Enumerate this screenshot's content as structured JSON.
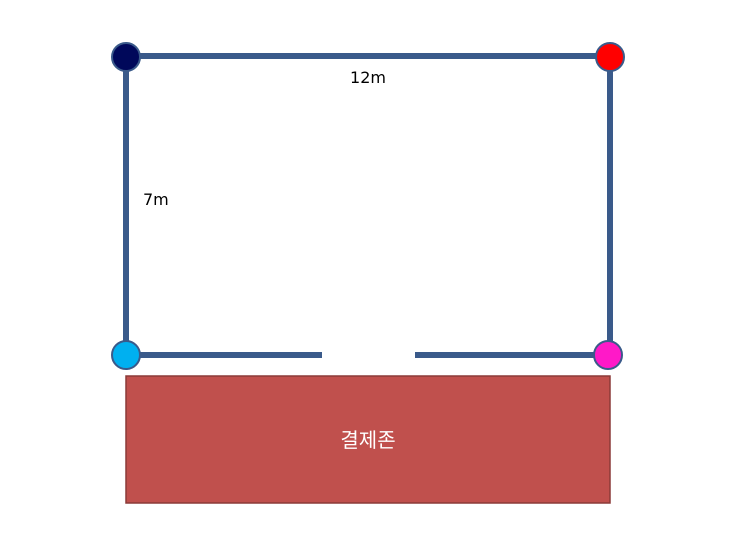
{
  "diagram": {
    "width_label": "12m",
    "height_label": "7m",
    "zone_label": "결제존",
    "colors": {
      "wall": "#3a5a8a",
      "zone_fill": "#c0504d",
      "zone_border": "#8b3a38",
      "corner_top_left": "#00085a",
      "corner_top_right": "#ff0000",
      "corner_bottom_left": "#00b0f0",
      "corner_bottom_right": "#ff19c8",
      "corner_border": "#3a5a8a"
    }
  }
}
